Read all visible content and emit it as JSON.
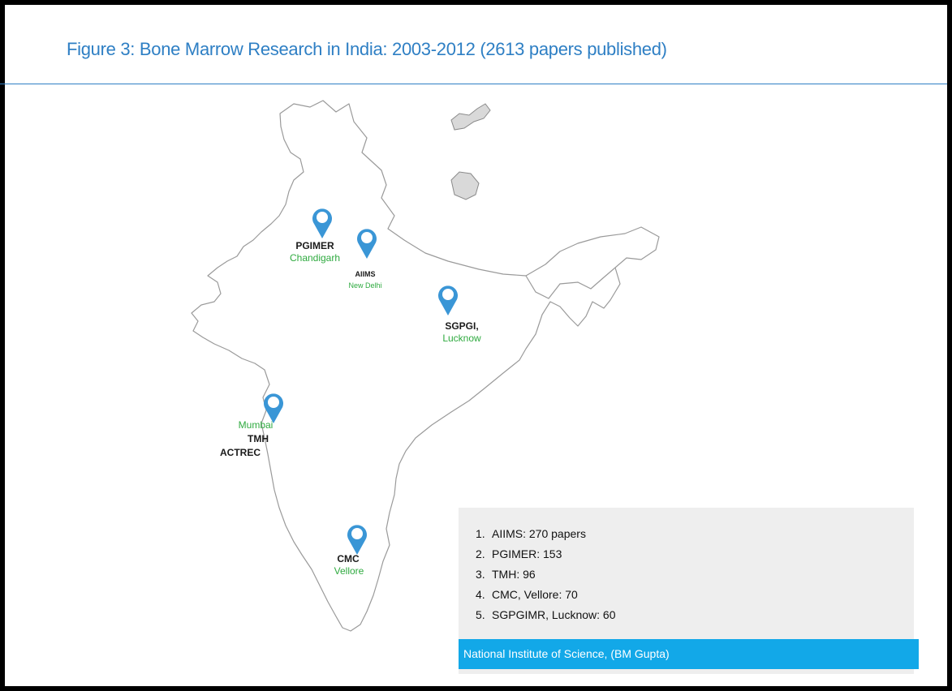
{
  "title": "Figure 3: Bone Marrow Research in India: 2003-2012 (2613 papers published)",
  "colors": {
    "title": "#2e7fc4",
    "marker": "#3a96d6",
    "city_label": "#2eaa3f",
    "institute_label": "#1a1a1a",
    "legend_bg": "#eeeeee",
    "source_bg": "#12a8e8"
  },
  "markers": [
    {
      "id": "pgimer",
      "institute": "PGIMER",
      "city": "Chandigarh",
      "icon": "map-pin-icon"
    },
    {
      "id": "aiims",
      "institute": "AIIMS",
      "city": "New Delhi",
      "icon": "map-pin-icon"
    },
    {
      "id": "sgpgi",
      "institute": "SGPGI,",
      "city": "Lucknow",
      "icon": "map-pin-icon"
    },
    {
      "id": "mumbai",
      "city": "Mumbai",
      "institute": "TMH",
      "institute2": "ACTREC",
      "icon": "map-pin-icon"
    },
    {
      "id": "cmc",
      "institute": "CMC",
      "city": "Vellore",
      "icon": "map-pin-icon"
    }
  ],
  "ranking": [
    {
      "num": "1.",
      "text": "AIIMS: 270 papers"
    },
    {
      "num": "2.",
      "text": "PGIMER: 153"
    },
    {
      "num": "3.",
      "text": "TMH: 96"
    },
    {
      "num": "4.",
      "text": "CMC, Vellore: 70"
    },
    {
      "num": "5.",
      "text": "SGPGIMR, Lucknow: 60"
    }
  ],
  "source": "National Institute of Science, (BM Gupta)"
}
